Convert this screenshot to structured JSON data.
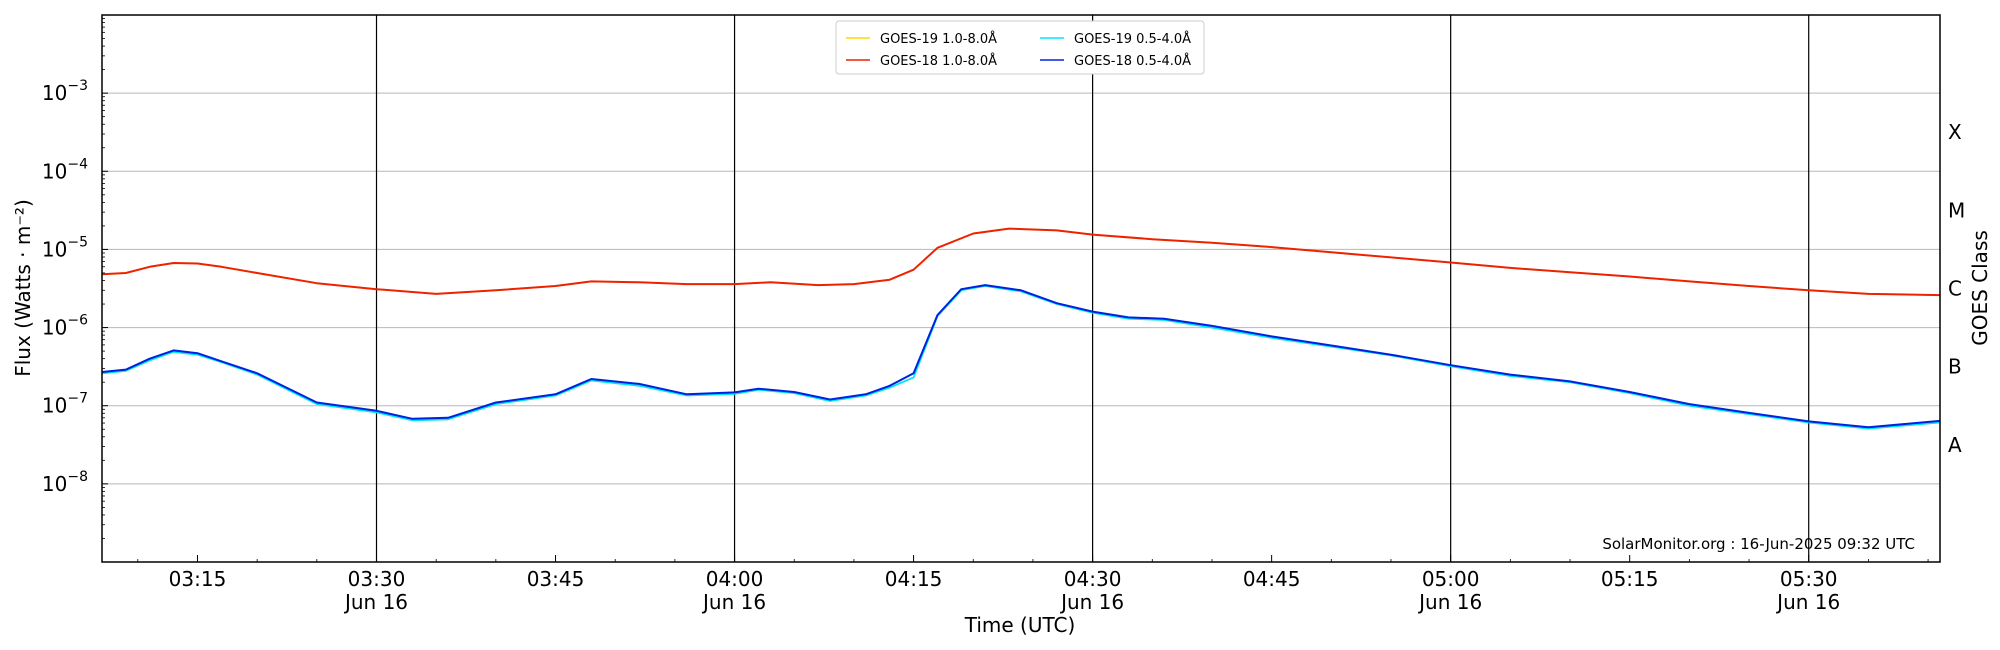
{
  "chart_data": {
    "type": "line",
    "xlabel": "Time (UTC)",
    "ylabel": "Flux (Watts · m⁻²)",
    "right_label": "GOES Class",
    "credit": "SolarMonitor.org : 16-Jun-2025 09:32 UTC",
    "y_scale": "log",
    "ylim": [
      1e-09,
      0.01
    ],
    "xlim": [
      "2025-06-16T03:07",
      "2025-06-16T05:41"
    ],
    "grid": "horizontal",
    "legend_position": "top-center",
    "y_ticks": [
      {
        "value": 1e-08,
        "mant": "10",
        "exp": "−8"
      },
      {
        "value": 1e-07,
        "mant": "10",
        "exp": "−7"
      },
      {
        "value": 1e-06,
        "mant": "10",
        "exp": "−6"
      },
      {
        "value": 1e-05,
        "mant": "10",
        "exp": "−5"
      },
      {
        "value": 0.0001,
        "mant": "10",
        "exp": "−4"
      },
      {
        "value": 0.001,
        "mant": "10",
        "exp": "−3"
      }
    ],
    "x_ticks": [
      {
        "time": "2025-06-16T03:15",
        "label": "03:15",
        "date": ""
      },
      {
        "time": "2025-06-16T03:30",
        "label": "03:30",
        "date": "Jun 16"
      },
      {
        "time": "2025-06-16T03:45",
        "label": "03:45",
        "date": ""
      },
      {
        "time": "2025-06-16T04:00",
        "label": "04:00",
        "date": "Jun 16"
      },
      {
        "time": "2025-06-16T04:15",
        "label": "04:15",
        "date": ""
      },
      {
        "time": "2025-06-16T04:30",
        "label": "04:30",
        "date": "Jun 16"
      },
      {
        "time": "2025-06-16T04:45",
        "label": "04:45",
        "date": ""
      },
      {
        "time": "2025-06-16T05:00",
        "label": "05:00",
        "date": "Jun 16"
      },
      {
        "time": "2025-06-16T05:15",
        "label": "05:15",
        "date": ""
      },
      {
        "time": "2025-06-16T05:30",
        "label": "05:30",
        "date": "Jun 16"
      }
    ],
    "vertical_lines": [
      "2025-06-16T03:30",
      "2025-06-16T04:00",
      "2025-06-16T04:30",
      "2025-06-16T05:00",
      "2025-06-16T05:30"
    ],
    "goes_classes": [
      {
        "label": "A",
        "value": 3.16e-08
      },
      {
        "label": "B",
        "value": 3.16e-07
      },
      {
        "label": "C",
        "value": 3.16e-06
      },
      {
        "label": "M",
        "value": 3.16e-05
      },
      {
        "label": "X",
        "value": 0.000316
      }
    ],
    "legend": [
      {
        "name": "GOES-19 1.0-8.0Å",
        "color": "#ffd700",
        "series": 0
      },
      {
        "name": "GOES-18 1.0-8.0Å",
        "color": "#ee2200",
        "series": 1
      },
      {
        "name": "GOES-19 0.5-4.0Å",
        "color": "#00e5ff",
        "series": 2
      },
      {
        "name": "GOES-18 0.5-4.0Å",
        "color": "#0022dd",
        "series": 3
      }
    ],
    "series": [
      {
        "name": "GOES-19 1.0-8.0Å",
        "color": "#ffd700",
        "width": 1.5,
        "x": [
          "2025-06-16T03:07",
          "2025-06-16T03:09",
          "2025-06-16T03:11",
          "2025-06-16T03:13",
          "2025-06-16T03:15",
          "2025-06-16T03:17",
          "2025-06-16T03:20",
          "2025-06-16T03:25",
          "2025-06-16T03:30",
          "2025-06-16T03:35",
          "2025-06-16T03:40",
          "2025-06-16T03:45",
          "2025-06-16T03:48",
          "2025-06-16T03:52",
          "2025-06-16T03:56",
          "2025-06-16T04:00",
          "2025-06-16T04:03",
          "2025-06-16T04:07",
          "2025-06-16T04:10",
          "2025-06-16T04:13",
          "2025-06-16T04:15",
          "2025-06-16T04:17",
          "2025-06-16T04:20",
          "2025-06-16T04:23",
          "2025-06-16T04:27",
          "2025-06-16T04:30",
          "2025-06-16T04:35",
          "2025-06-16T04:40",
          "2025-06-16T04:45",
          "2025-06-16T04:50",
          "2025-06-16T04:55",
          "2025-06-16T05:00",
          "2025-06-16T05:05",
          "2025-06-16T05:10",
          "2025-06-16T05:15",
          "2025-06-16T05:20",
          "2025-06-16T05:25",
          "2025-06-16T05:30",
          "2025-06-16T05:35",
          "2025-06-16T05:41"
        ],
        "y": [
          4.8e-06,
          5e-06,
          6e-06,
          6.7e-06,
          6.6e-06,
          6e-06,
          5e-06,
          3.7e-06,
          3.1e-06,
          2.7e-06,
          3e-06,
          3.4e-06,
          3.9e-06,
          3.8e-06,
          3.6e-06,
          3.6e-06,
          3.8e-06,
          3.5e-06,
          3.6e-06,
          4.1e-06,
          5.5e-06,
          1.05e-05,
          1.6e-05,
          1.85e-05,
          1.75e-05,
          1.55e-05,
          1.35e-05,
          1.22e-05,
          1.07e-05,
          9.2e-06,
          7.9e-06,
          6.8e-06,
          5.8e-06,
          5.1e-06,
          4.5e-06,
          3.9e-06,
          3.4e-06,
          3e-06,
          2.7e-06,
          2.6e-06
        ]
      },
      {
        "name": "GOES-18 1.0-8.0Å",
        "color": "#ee2200",
        "width": 2,
        "x": [
          "2025-06-16T03:07",
          "2025-06-16T03:09",
          "2025-06-16T03:11",
          "2025-06-16T03:13",
          "2025-06-16T03:15",
          "2025-06-16T03:17",
          "2025-06-16T03:20",
          "2025-06-16T03:25",
          "2025-06-16T03:30",
          "2025-06-16T03:35",
          "2025-06-16T03:40",
          "2025-06-16T03:45",
          "2025-06-16T03:48",
          "2025-06-16T03:52",
          "2025-06-16T03:56",
          "2025-06-16T04:00",
          "2025-06-16T04:03",
          "2025-06-16T04:07",
          "2025-06-16T04:10",
          "2025-06-16T04:13",
          "2025-06-16T04:15",
          "2025-06-16T04:17",
          "2025-06-16T04:20",
          "2025-06-16T04:23",
          "2025-06-16T04:27",
          "2025-06-16T04:30",
          "2025-06-16T04:35",
          "2025-06-16T04:40",
          "2025-06-16T04:45",
          "2025-06-16T04:50",
          "2025-06-16T04:55",
          "2025-06-16T05:00",
          "2025-06-16T05:05",
          "2025-06-16T05:10",
          "2025-06-16T05:15",
          "2025-06-16T05:20",
          "2025-06-16T05:25",
          "2025-06-16T05:30",
          "2025-06-16T05:35",
          "2025-06-16T05:41"
        ],
        "y": [
          4.8e-06,
          5e-06,
          6e-06,
          6.7e-06,
          6.6e-06,
          6e-06,
          5e-06,
          3.7e-06,
          3.1e-06,
          2.7e-06,
          3e-06,
          3.4e-06,
          3.9e-06,
          3.8e-06,
          3.6e-06,
          3.6e-06,
          3.8e-06,
          3.5e-06,
          3.6e-06,
          4.1e-06,
          5.5e-06,
          1.05e-05,
          1.6e-05,
          1.85e-05,
          1.75e-05,
          1.55e-05,
          1.35e-05,
          1.22e-05,
          1.07e-05,
          9.2e-06,
          7.9e-06,
          6.8e-06,
          5.8e-06,
          5.1e-06,
          4.5e-06,
          3.9e-06,
          3.4e-06,
          3e-06,
          2.7e-06,
          2.6e-06
        ]
      },
      {
        "name": "GOES-19 0.5-4.0Å",
        "color": "#00e5ff",
        "width": 1.8,
        "x": [
          "2025-06-16T03:07",
          "2025-06-16T03:09",
          "2025-06-16T03:11",
          "2025-06-16T03:13",
          "2025-06-16T03:15",
          "2025-06-16T03:17",
          "2025-06-16T03:20",
          "2025-06-16T03:25",
          "2025-06-16T03:30",
          "2025-06-16T03:33",
          "2025-06-16T03:36",
          "2025-06-16T03:40",
          "2025-06-16T03:45",
          "2025-06-16T03:48",
          "2025-06-16T03:52",
          "2025-06-16T03:56",
          "2025-06-16T04:00",
          "2025-06-16T04:02",
          "2025-06-16T04:05",
          "2025-06-16T04:08",
          "2025-06-16T04:11",
          "2025-06-16T04:13",
          "2025-06-16T04:15",
          "2025-06-16T04:17",
          "2025-06-16T04:19",
          "2025-06-16T04:21",
          "2025-06-16T04:24",
          "2025-06-16T04:27",
          "2025-06-16T04:30",
          "2025-06-16T04:33",
          "2025-06-16T04:36",
          "2025-06-16T04:40",
          "2025-06-16T04:45",
          "2025-06-16T04:50",
          "2025-06-16T04:55",
          "2025-06-16T05:00",
          "2025-06-16T05:05",
          "2025-06-16T05:10",
          "2025-06-16T05:15",
          "2025-06-16T05:20",
          "2025-06-16T05:25",
          "2025-06-16T05:30",
          "2025-06-16T05:35",
          "2025-06-16T05:41"
        ],
        "y": [
          2.6e-07,
          2.8e-07,
          3.8e-07,
          4.9e-07,
          4.5e-07,
          3.6e-07,
          2.5e-07,
          1.05e-07,
          8.2e-08,
          6.5e-08,
          6.7e-08,
          1.05e-07,
          1.35e-07,
          2.1e-07,
          1.8e-07,
          1.35e-07,
          1.42e-07,
          1.6e-07,
          1.45e-07,
          1.15e-07,
          1.35e-07,
          1.7e-07,
          2.3e-07,
          1.4e-06,
          3e-06,
          3.4e-06,
          2.9e-06,
          2e-06,
          1.55e-06,
          1.3e-06,
          1.25e-06,
          1e-06,
          7.4e-07,
          5.7e-07,
          4.4e-07,
          3.2e-07,
          2.4e-07,
          2e-07,
          1.45e-07,
          1e-07,
          7.8e-08,
          6.1e-08,
          5.1e-08,
          6.1e-08
        ]
      },
      {
        "name": "GOES-18 0.5-4.0Å",
        "color": "#0022dd",
        "width": 2,
        "x": [
          "2025-06-16T03:07",
          "2025-06-16T03:09",
          "2025-06-16T03:11",
          "2025-06-16T03:13",
          "2025-06-16T03:15",
          "2025-06-16T03:17",
          "2025-06-16T03:20",
          "2025-06-16T03:25",
          "2025-06-16T03:30",
          "2025-06-16T03:33",
          "2025-06-16T03:36",
          "2025-06-16T03:40",
          "2025-06-16T03:45",
          "2025-06-16T03:48",
          "2025-06-16T03:52",
          "2025-06-16T03:56",
          "2025-06-16T04:00",
          "2025-06-16T04:02",
          "2025-06-16T04:05",
          "2025-06-16T04:08",
          "2025-06-16T04:11",
          "2025-06-16T04:13",
          "2025-06-16T04:15",
          "2025-06-16T04:17",
          "2025-06-16T04:19",
          "2025-06-16T04:21",
          "2025-06-16T04:24",
          "2025-06-16T04:27",
          "2025-06-16T04:30",
          "2025-06-16T04:33",
          "2025-06-16T04:36",
          "2025-06-16T04:40",
          "2025-06-16T04:45",
          "2025-06-16T04:50",
          "2025-06-16T04:55",
          "2025-06-16T05:00",
          "2025-06-16T05:05",
          "2025-06-16T05:10",
          "2025-06-16T05:15",
          "2025-06-16T05:20",
          "2025-06-16T05:25",
          "2025-06-16T05:30",
          "2025-06-16T05:35",
          "2025-06-16T05:41"
        ],
        "y": [
          2.7e-07,
          2.9e-07,
          4e-07,
          5.1e-07,
          4.7e-07,
          3.7e-07,
          2.6e-07,
          1.1e-07,
          8.6e-08,
          6.8e-08,
          7e-08,
          1.1e-07,
          1.4e-07,
          2.2e-07,
          1.9e-07,
          1.4e-07,
          1.48e-07,
          1.65e-07,
          1.5e-07,
          1.2e-07,
          1.4e-07,
          1.8e-07,
          2.6e-07,
          1.45e-06,
          3.1e-06,
          3.5e-06,
          3e-06,
          2.05e-06,
          1.6e-06,
          1.35e-06,
          1.3e-06,
          1.05e-06,
          7.7e-07,
          5.9e-07,
          4.5e-07,
          3.3e-07,
          2.5e-07,
          2.05e-07,
          1.5e-07,
          1.05e-07,
          8.1e-08,
          6.3e-08,
          5.3e-08,
          6.4e-08
        ]
      }
    ]
  }
}
